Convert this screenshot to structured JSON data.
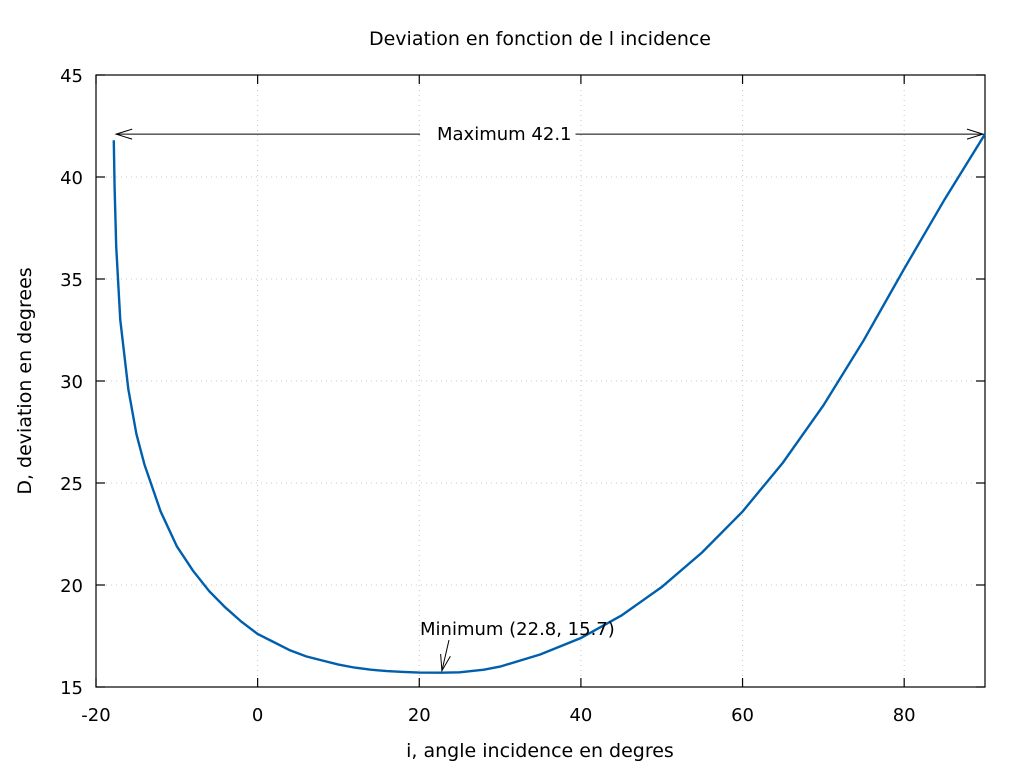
{
  "chart_data": {
    "type": "line",
    "title": "Deviation en fonction de l incidence",
    "xlabel": "i, angle incidence en degres",
    "ylabel": "D, deviation en degrees",
    "xlim": [
      -20,
      90
    ],
    "ylim": [
      15,
      45
    ],
    "xticks": [
      -20,
      0,
      20,
      40,
      60,
      80
    ],
    "yticks": [
      15,
      20,
      25,
      30,
      35,
      40,
      45
    ],
    "grid": true,
    "series_color": "#005fad",
    "series": [
      {
        "x": [
          -17.8,
          -17.7,
          -17.5,
          -17,
          -16,
          -15,
          -14,
          -12,
          -10,
          -8,
          -6,
          -4,
          -2,
          0,
          2,
          4,
          6,
          8,
          10,
          12,
          14,
          16,
          18,
          20,
          22.8,
          25,
          28,
          30,
          35,
          40,
          45,
          50,
          55,
          60,
          65,
          70,
          75,
          80,
          85,
          90
        ],
        "y": [
          41.8,
          39.5,
          36.6,
          33.0,
          29.6,
          27.4,
          25.9,
          23.6,
          21.9,
          20.7,
          19.7,
          18.9,
          18.2,
          17.6,
          17.2,
          16.8,
          16.5,
          16.3,
          16.1,
          15.95,
          15.85,
          15.78,
          15.74,
          15.71,
          15.7,
          15.72,
          15.85,
          16.0,
          16.6,
          17.4,
          18.5,
          19.9,
          21.6,
          23.6,
          26.0,
          28.8,
          32.0,
          35.5,
          38.9,
          42.1
        ]
      }
    ],
    "annotations": [
      {
        "text": "Maximum 42.1",
        "y": 42.1,
        "from_x": -18,
        "to_x": 90
      },
      {
        "text": "Minimum (22.8, 15.7)",
        "x": 22.8,
        "y": 15.7
      }
    ]
  }
}
